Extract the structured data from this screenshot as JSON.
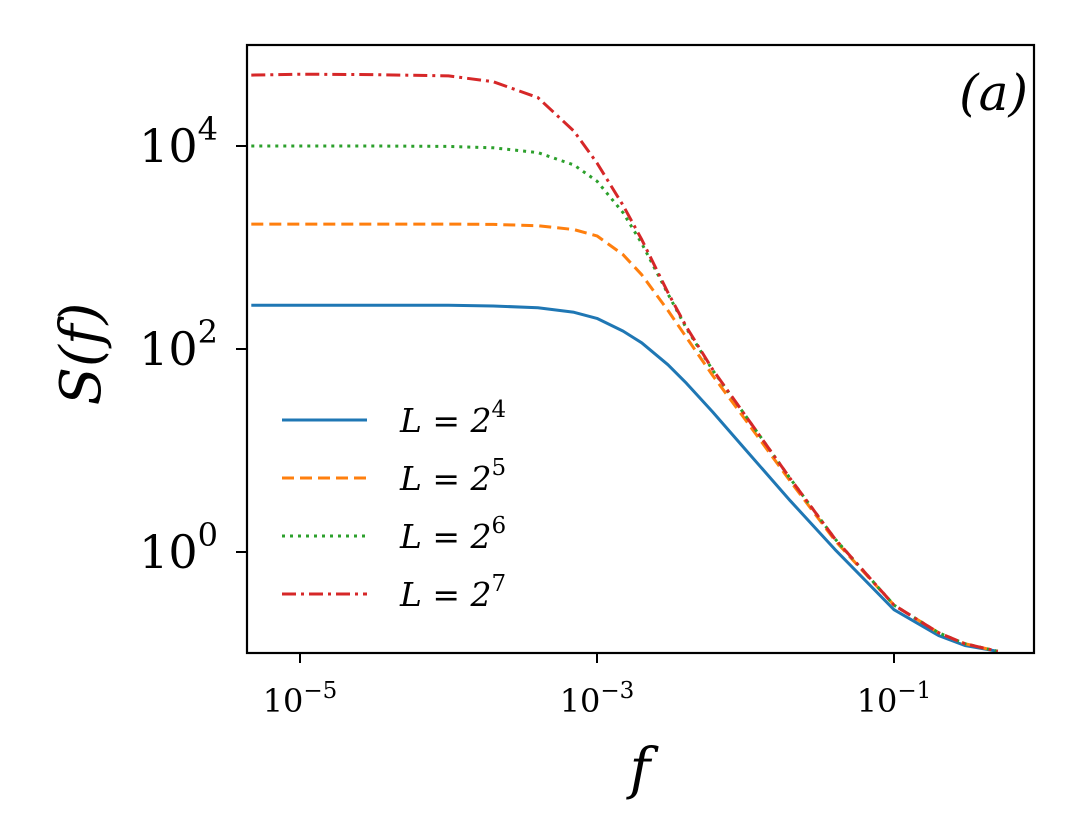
{
  "chart_data": {
    "type": "line",
    "panel_label": "(a)",
    "xlabel": "f",
    "ylabel": "S(f)",
    "xscale": "log",
    "yscale": "log",
    "xlim": [
      3.5e-06,
      1.2
    ],
    "ylim": [
      0.1,
      120000
    ],
    "grid": false,
    "legend_position": "lower-left",
    "x_ticks": [
      {
        "value": 1e-05,
        "base": "10",
        "exp": "−5"
      },
      {
        "value": 0.001,
        "base": "10",
        "exp": "−3"
      },
      {
        "value": 0.1,
        "base": "10",
        "exp": "−1"
      }
    ],
    "y_ticks": [
      {
        "value": 1,
        "base": "10",
        "exp": "0"
      },
      {
        "value": 100,
        "base": "10",
        "exp": "2"
      },
      {
        "value": 10000,
        "base": "10",
        "exp": "4"
      }
    ],
    "f_points": [
      4.7e-06,
      1e-05,
      3e-05,
      0.0001,
      0.0002,
      0.0004,
      0.0007,
      0.001,
      0.0015,
      0.002,
      0.003,
      0.004,
      0.006,
      0.01,
      0.02,
      0.04,
      0.1,
      0.2,
      0.3,
      0.5
    ],
    "series": [
      {
        "name": "L = 2^4",
        "label_base": "L = 2",
        "label_exp": "4",
        "color": "#1f77b4",
        "dash": "",
        "values": [
          270,
          270,
          270,
          270,
          265,
          255,
          230,
          200,
          150,
          115,
          70,
          46,
          24,
          10.2,
          3.2,
          1.06,
          0.27,
          0.15,
          0.12,
          0.105
        ]
      },
      {
        "name": "L = 2^5",
        "label_base": "L = 2",
        "label_exp": "5",
        "color": "#ff7f0e",
        "dash": "12 6",
        "values": [
          1700,
          1700,
          1700,
          1700,
          1690,
          1640,
          1500,
          1300,
          850,
          540,
          240,
          130,
          55,
          20,
          5,
          1.3,
          0.3,
          0.16,
          0.125,
          0.105
        ]
      },
      {
        "name": "L = 2^6",
        "label_base": "L = 2",
        "label_exp": "6",
        "color": "#2ca02c",
        "dash": "3 5",
        "values": [
          10000,
          10000,
          10000,
          9900,
          9600,
          8600,
          6500,
          4500,
          2200,
          1100,
          350,
          160,
          62,
          22,
          5.3,
          1.35,
          0.3,
          0.16,
          0.125,
          0.105
        ]
      },
      {
        "name": "L = 2^7",
        "label_base": "L = 2",
        "label_exp": "7",
        "color": "#d62728",
        "dash": "14 5 3 5",
        "values": [
          50000,
          51000,
          50500,
          49000,
          43000,
          30000,
          14000,
          6800,
          2600,
          1200,
          360,
          165,
          63,
          22,
          5.3,
          1.35,
          0.3,
          0.16,
          0.125,
          0.105
        ]
      }
    ]
  }
}
